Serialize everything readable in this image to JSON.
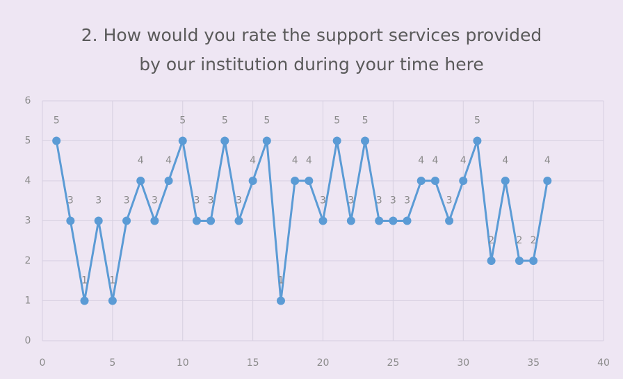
{
  "chart_data": {
    "type": "line",
    "title": "2. How would you rate the support services provided by our institution during your time here",
    "x": [
      1,
      2,
      3,
      4,
      5,
      6,
      7,
      8,
      9,
      10,
      11,
      12,
      13,
      14,
      15,
      16,
      17,
      18,
      19,
      20,
      21,
      22,
      23,
      24,
      25,
      26,
      27,
      28,
      29,
      30,
      31,
      32,
      33,
      34,
      35,
      36
    ],
    "series": [
      {
        "color": "#5b9bd5",
        "values": [
          5,
          3,
          1,
          3,
          1,
          3,
          4,
          3,
          4,
          5,
          3,
          3,
          5,
          3,
          4,
          5,
          1,
          4,
          4,
          3,
          5,
          3,
          5,
          3,
          3,
          3,
          4,
          4,
          3,
          4,
          5,
          2,
          4,
          2,
          2,
          4
        ]
      }
    ],
    "xlim": [
      0,
      40
    ],
    "xticks": [
      0,
      5,
      10,
      15,
      20,
      25,
      30,
      35,
      40
    ],
    "ylim": [
      0,
      6
    ],
    "yticks": [
      0,
      1,
      2,
      3,
      4,
      5,
      6
    ],
    "grid": true,
    "data_labels": true
  }
}
